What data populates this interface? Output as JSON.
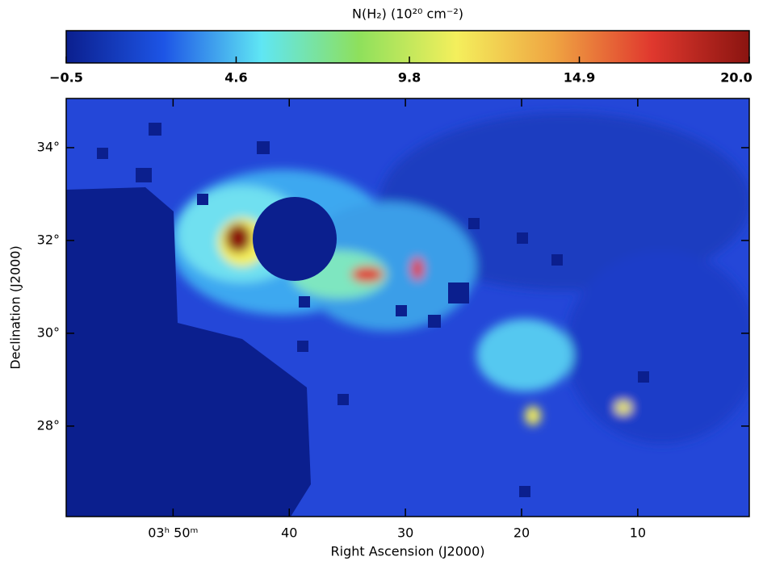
{
  "chart_data": {
    "type": "image",
    "colorbar_label": "N(H₂)  (10²⁰ cm⁻²)",
    "x_label": "Right Ascension (J2000)",
    "y_label": "Declination (J2000)",
    "colormap": [
      "#0b1f8e",
      "#1d55e6",
      "#5fe6f4",
      "#8ee05c",
      "#f4ef5c",
      "#efa442",
      "#e0382e",
      "#8a1410"
    ],
    "clim": [
      -0.5,
      20.0
    ],
    "cticks": [
      {
        "value": -0.5,
        "label": "−0.5"
      },
      4.6,
      9.8,
      14.9,
      {
        "value": 20.0,
        "label": "20.0"
      }
    ],
    "xlim": [
      59.2,
      0.4
    ],
    "xticks": [
      {
        "value": 50,
        "label": "03ʰ 50ᵐ"
      },
      40,
      30,
      20,
      10
    ],
    "ylim": [
      26.05,
      35.06
    ],
    "yticks": [
      {
        "value": 28,
        "label": "28°"
      },
      {
        "value": 30,
        "label": "30°"
      },
      {
        "value": 32,
        "label": "32°"
      },
      {
        "value": 34,
        "label": "34°"
      }
    ]
  }
}
